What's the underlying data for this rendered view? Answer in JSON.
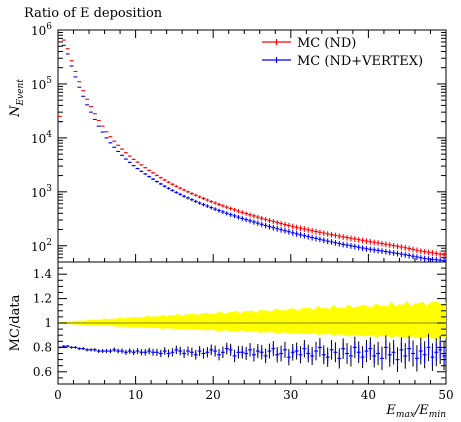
{
  "colors": {
    "mc_nd": "#ff0000",
    "mc_nd_vertex": "#0000ff",
    "band": "#ffff00",
    "ratio_black": "#000000"
  },
  "chart_data": [
    {
      "type": "scatter",
      "panel": "top",
      "title": "Ratio of E deposition",
      "xlabel": "",
      "ylabel_main": "N",
      "ylabel_sub": "Event",
      "yscale": "log",
      "xlim": [
        0,
        50
      ],
      "ylim": [
        50,
        1000000
      ],
      "xticks": [
        0,
        10,
        20,
        30,
        40,
        50
      ],
      "yticks": [
        {
          "value": 100,
          "base": "10",
          "exp": "2"
        },
        {
          "value": 1000,
          "base": "10",
          "exp": "3"
        },
        {
          "value": 10000,
          "base": "10",
          "exp": "4"
        },
        {
          "value": 100000,
          "base": "10",
          "exp": "5"
        },
        {
          "value": 1000000,
          "base": "10",
          "exp": "6"
        }
      ],
      "legend_position": "top-right",
      "series": [
        {
          "name": "MC (ND)",
          "x": [
            0.25,
            0.75,
            1.25,
            1.75,
            2.25,
            2.75,
            3.25,
            3.75,
            4.25,
            4.75,
            5.25,
            5.75,
            6.25,
            6.75,
            7.25,
            7.75,
            8.25,
            8.75,
            9.25,
            9.75,
            10.25,
            10.75,
            11.25,
            11.75,
            12.25,
            12.75,
            13.25,
            13.75,
            14.25,
            14.75,
            15.25,
            15.75,
            16.25,
            16.75,
            17.25,
            17.75,
            18.25,
            18.75,
            19.25,
            19.75,
            20.25,
            20.75,
            21.25,
            21.75,
            22.25,
            22.75,
            23.25,
            23.75,
            24.25,
            24.75,
            25.25,
            25.75,
            26.25,
            26.75,
            27.25,
            27.75,
            28.25,
            28.75,
            29.25,
            29.75,
            30.25,
            30.75,
            31.25,
            31.75,
            32.25,
            32.75,
            33.25,
            33.75,
            34.25,
            34.75,
            35.25,
            35.75,
            36.25,
            36.75,
            37.25,
            37.75,
            38.25,
            38.75,
            39.25,
            39.75,
            40.25,
            40.75,
            41.25,
            41.75,
            42.25,
            42.75,
            43.25,
            43.75,
            44.25,
            44.75,
            45.25,
            45.75,
            46.25,
            46.75,
            47.25,
            47.75,
            48.25,
            48.75,
            49.25,
            49.75
          ],
          "y": [
            25000,
            650000,
            450000,
            270000,
            170000,
            110000,
            75000,
            52000,
            38000,
            28000,
            21000,
            16500,
            13000,
            10500,
            8700,
            7300,
            6200,
            5300,
            4600,
            4000,
            3550,
            3150,
            2800,
            2500,
            2250,
            2020,
            1830,
            1660,
            1510,
            1380,
            1270,
            1170,
            1080,
            1000,
            930,
            865,
            805,
            755,
            705,
            660,
            620,
            585,
            550,
            520,
            492,
            465,
            440,
            417,
            396,
            376,
            358,
            340,
            324,
            309,
            295,
            282,
            270,
            258,
            248,
            238,
            229,
            220,
            212,
            205,
            198,
            191,
            184,
            178,
            172,
            166,
            161,
            156,
            151,
            146,
            142,
            138,
            134,
            130,
            126,
            122,
            119,
            116,
            113,
            110,
            107,
            104,
            101,
            98,
            95,
            92,
            89,
            86,
            83,
            80,
            78,
            76,
            74,
            72,
            70,
            68
          ]
        },
        {
          "name": "MC (ND+VERTEX)",
          "x": [
            0.25,
            0.75,
            1.25,
            1.75,
            2.25,
            2.75,
            3.25,
            3.75,
            4.25,
            4.75,
            5.25,
            5.75,
            6.25,
            6.75,
            7.25,
            7.75,
            8.25,
            8.75,
            9.25,
            9.75,
            10.25,
            10.75,
            11.25,
            11.75,
            12.25,
            12.75,
            13.25,
            13.75,
            14.25,
            14.75,
            15.25,
            15.75,
            16.25,
            16.75,
            17.25,
            17.75,
            18.25,
            18.75,
            19.25,
            19.75,
            20.25,
            20.75,
            21.25,
            21.75,
            22.25,
            22.75,
            23.25,
            23.75,
            24.25,
            24.75,
            25.25,
            25.75,
            26.25,
            26.75,
            27.25,
            27.75,
            28.25,
            28.75,
            29.25,
            29.75,
            30.25,
            30.75,
            31.25,
            31.75,
            32.25,
            32.75,
            33.25,
            33.75,
            34.25,
            34.75,
            35.25,
            35.75,
            36.25,
            36.75,
            37.25,
            37.75,
            38.25,
            38.75,
            39.25,
            39.75,
            40.25,
            40.75,
            41.25,
            41.75,
            42.25,
            42.75,
            43.25,
            43.75,
            44.25,
            44.75,
            45.25,
            45.75,
            46.25,
            46.75,
            47.25,
            47.75,
            48.25,
            48.75,
            49.25,
            49.75
          ],
          "y": [
            20000,
            520000,
            360000,
            215000,
            135000,
            87000,
            59000,
            41000,
            30000,
            22000,
            16500,
            12800,
            10000,
            8100,
            6700,
            5600,
            4750,
            4050,
            3520,
            3060,
            2700,
            2400,
            2140,
            1910,
            1720,
            1550,
            1400,
            1270,
            1160,
            1060,
            975,
            900,
            830,
            770,
            715,
            665,
            620,
            580,
            545,
            510,
            478,
            450,
            424,
            400,
            378,
            358,
            339,
            321,
            305,
            290,
            276,
            263,
            250,
            238,
            227,
            217,
            207,
            198,
            190,
            182,
            174,
            167,
            160,
            154,
            148,
            142,
            137,
            132,
            127,
            122,
            118,
            114,
            110,
            106,
            103,
            100,
            97,
            94,
            91,
            88,
            86,
            84,
            82,
            80,
            78,
            76,
            74,
            72,
            70,
            68,
            66,
            64,
            62,
            60,
            58,
            57,
            56,
            55,
            54,
            53
          ]
        }
      ]
    },
    {
      "type": "scatter",
      "panel": "bottom",
      "ylabel": "MC/data",
      "xlabel_main": "E",
      "xlabel_sub1": "max",
      "xlabel_sep": "/E",
      "xlabel_sub2": "min",
      "xlim": [
        0,
        50
      ],
      "ylim": [
        0.5,
        1.5
      ],
      "xticks": [
        0,
        10,
        20,
        30,
        40,
        50
      ],
      "yticks": [
        {
          "value": 0.6,
          "label": "0.6"
        },
        {
          "value": 0.8,
          "label": "0.8"
        },
        {
          "value": 1.0,
          "label": "1"
        },
        {
          "value": 1.2,
          "label": "1.2"
        },
        {
          "value": 1.4,
          "label": "1.4"
        }
      ],
      "band": {
        "center": 1.0,
        "halfwidth_start": 0.005,
        "halfwidth_end": 0.17
      },
      "ratio_series": {
        "x_start": 0.25,
        "x_step": 0.5,
        "values": [
          0.8,
          0.81,
          0.81,
          0.8,
          0.8,
          0.79,
          0.79,
          0.78,
          0.78,
          0.78,
          0.77,
          0.77,
          0.77,
          0.77,
          0.78,
          0.77,
          0.77,
          0.76,
          0.77,
          0.76,
          0.77,
          0.76,
          0.76,
          0.77,
          0.76,
          0.76,
          0.75,
          0.77,
          0.75,
          0.76,
          0.78,
          0.77,
          0.75,
          0.77,
          0.76,
          0.74,
          0.77,
          0.75,
          0.76,
          0.78,
          0.77,
          0.74,
          0.76,
          0.79,
          0.78,
          0.73,
          0.76,
          0.76,
          0.75,
          0.78,
          0.74,
          0.77,
          0.76,
          0.73,
          0.77,
          0.79,
          0.74,
          0.75,
          0.78,
          0.72,
          0.76,
          0.77,
          0.74,
          0.79,
          0.75,
          0.73,
          0.77,
          0.8,
          0.74,
          0.72,
          0.78,
          0.76,
          0.71,
          0.79,
          0.75,
          0.73,
          0.8,
          0.76,
          0.72,
          0.77,
          0.79,
          0.73,
          0.75,
          0.71,
          0.8,
          0.74,
          0.76,
          0.7,
          0.78,
          0.73,
          0.79,
          0.75,
          0.71,
          0.77,
          0.74,
          0.8,
          0.72,
          0.76,
          0.78,
          0.73
        ]
      }
    }
  ]
}
